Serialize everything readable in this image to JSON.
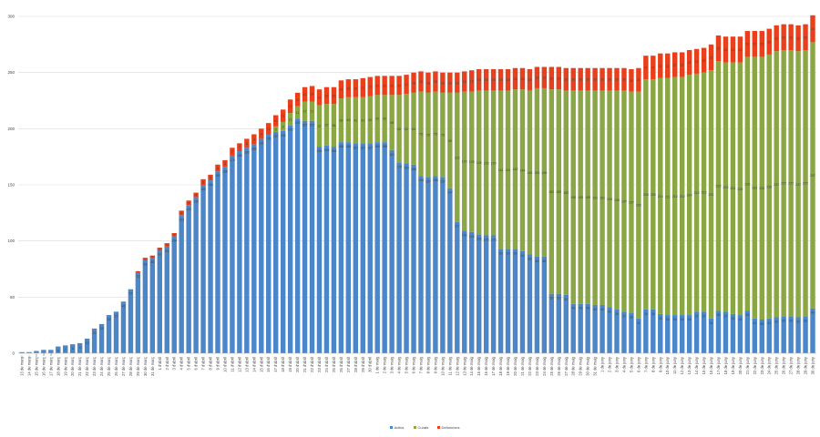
{
  "chart_data": {
    "type": "bar",
    "stacked": true,
    "categories": [
      "13 de març",
      "14 de març",
      "15 de març",
      "16 de març",
      "17 de març",
      "18 de març",
      "19 de març",
      "20 de març",
      "21 de març",
      "22 de març",
      "23 de març",
      "24 de març",
      "25 de març",
      "26 de març",
      "27 de març",
      "28 de març",
      "29 de març",
      "30 de març",
      "31 de març",
      "1 d'abril",
      "2 d'abril",
      "3 d'abril",
      "4 d'abril",
      "5 d'abril",
      "6 d'abril",
      "7 d'abril",
      "8 d'abril",
      "9 d'abril",
      "10 d'abril",
      "11 d'abril",
      "12 d'abril",
      "13 d'abril",
      "14 d'abril",
      "15 d'abril",
      "16 d'abril",
      "17 d'abril",
      "18 d'abril",
      "19 d'abril",
      "20 d'abril",
      "21 d'abril",
      "22 d'abril",
      "23 d'abril",
      "24 d'abril",
      "25 d'abril",
      "26 d'abril",
      "27 d'abril",
      "28 d'abril",
      "29 d'abril",
      "30 d'abril",
      "1 de maig",
      "2 de maig",
      "3 de maig",
      "4 de maig",
      "5 de maig",
      "6 de maig",
      "7 de maig",
      "8 de maig",
      "9 de maig",
      "10 de maig",
      "11 de maig",
      "12 de maig",
      "13 de maig",
      "14 de maig",
      "15 de maig",
      "16 de maig",
      "17 de maig",
      "18 de maig",
      "19 de maig",
      "20 de maig",
      "21 de maig",
      "22 de maig",
      "23 de maig",
      "24 de maig",
      "25 de maig",
      "26 de maig",
      "27 de maig",
      "28 de maig",
      "29 de maig",
      "30 de maig",
      "31 de maig",
      "1 de juny",
      "2 de juny",
      "3 de juny",
      "4 de juny",
      "5 de juny",
      "6 de juny",
      "7 de juny",
      "8 de juny",
      "9 de juny",
      "10 de juny",
      "11 de juny",
      "12 de juny",
      "13 de juny",
      "14 de juny",
      "15 de juny",
      "16 de juny",
      "17 de juny",
      "18 de juny",
      "19 de juny",
      "20 de juny",
      "21 de juny",
      "22 de juny",
      "23 de juny",
      "24 de juny",
      "25 de juny",
      "26 de juny",
      "27 de juny",
      "28 de juny",
      "29 de juny",
      "30 de juny"
    ],
    "series": [
      {
        "name": "Actius",
        "color": "#4a86c8",
        "values": [
          1,
          1,
          2,
          3,
          3,
          6,
          7,
          8,
          9,
          13,
          22,
          26,
          34,
          37,
          46,
          57,
          72,
          83,
          85,
          92,
          95,
          104,
          123,
          132,
          139,
          150,
          154,
          162,
          166,
          176,
          180,
          183,
          186,
          191,
          195,
          197,
          198,
          203,
          209,
          207,
          207,
          184,
          185,
          184,
          188,
          188,
          187,
          187,
          187,
          188,
          188,
          181,
          170,
          169,
          168,
          158,
          157,
          158,
          157,
          147,
          117,
          109,
          108,
          106,
          105,
          105,
          93,
          93,
          93,
          91,
          88,
          86,
          86,
          53,
          53,
          52,
          44,
          44,
          44,
          43,
          43,
          41,
          39,
          37,
          36,
          31,
          39,
          39,
          35,
          34,
          34,
          34,
          34,
          37,
          37,
          31,
          38,
          37,
          35,
          34,
          38,
          31,
          30,
          31,
          32,
          33,
          33,
          32,
          33,
          40
        ]
      },
      {
        "name": "Curats",
        "color": "#8aa645",
        "values": [
          0,
          0,
          0,
          0,
          0,
          0,
          0,
          0,
          0,
          0,
          0,
          0,
          0,
          0,
          0,
          0,
          0,
          0,
          0,
          0,
          0,
          0,
          0,
          0,
          0,
          0,
          0,
          0,
          0,
          0,
          0,
          0,
          0,
          0,
          0,
          5,
          8,
          11,
          11,
          17,
          17,
          37,
          37,
          38,
          39,
          40,
          41,
          41,
          42,
          42,
          42,
          49,
          60,
          62,
          64,
          75,
          75,
          75,
          75,
          85,
          115,
          124,
          125,
          128,
          129,
          129,
          141,
          141,
          142,
          144,
          146,
          150,
          150,
          182,
          182,
          182,
          190,
          190,
          190,
          191,
          191,
          193,
          195,
          197,
          197,
          202,
          205,
          205,
          210,
          211,
          212,
          212,
          214,
          212,
          213,
          221,
          222,
          222,
          224,
          225,
          226,
          233,
          234,
          235,
          237,
          237,
          237,
          237,
          237,
          237
        ]
      },
      {
        "name": "Defuncions",
        "color": "#e8401c",
        "values": [
          0,
          0,
          0,
          0,
          0,
          0,
          0,
          0,
          0,
          0,
          0,
          0,
          0,
          0,
          0,
          0,
          1,
          2,
          2,
          2,
          3,
          3,
          4,
          4,
          4,
          5,
          5,
          6,
          6,
          7,
          7,
          8,
          9,
          9,
          10,
          10,
          11,
          12,
          12,
          13,
          14,
          14,
          15,
          15,
          16,
          16,
          16,
          17,
          17,
          17,
          17,
          17,
          17,
          17,
          18,
          18,
          18,
          18,
          18,
          18,
          18,
          18,
          19,
          19,
          19,
          19,
          19,
          19,
          19,
          19,
          19,
          19,
          19,
          20,
          20,
          20,
          20,
          20,
          20,
          20,
          20,
          20,
          20,
          20,
          20,
          21,
          21,
          21,
          22,
          22,
          22,
          22,
          22,
          22,
          22,
          23,
          23,
          23,
          23,
          23,
          23,
          23,
          23,
          23,
          23,
          23,
          23,
          23,
          23,
          24
        ]
      }
    ],
    "ylim": [
      0,
      300
    ],
    "yticks": [
      0,
      50,
      100,
      150,
      200,
      250,
      300
    ],
    "grid": true,
    "legend": "bottom"
  }
}
